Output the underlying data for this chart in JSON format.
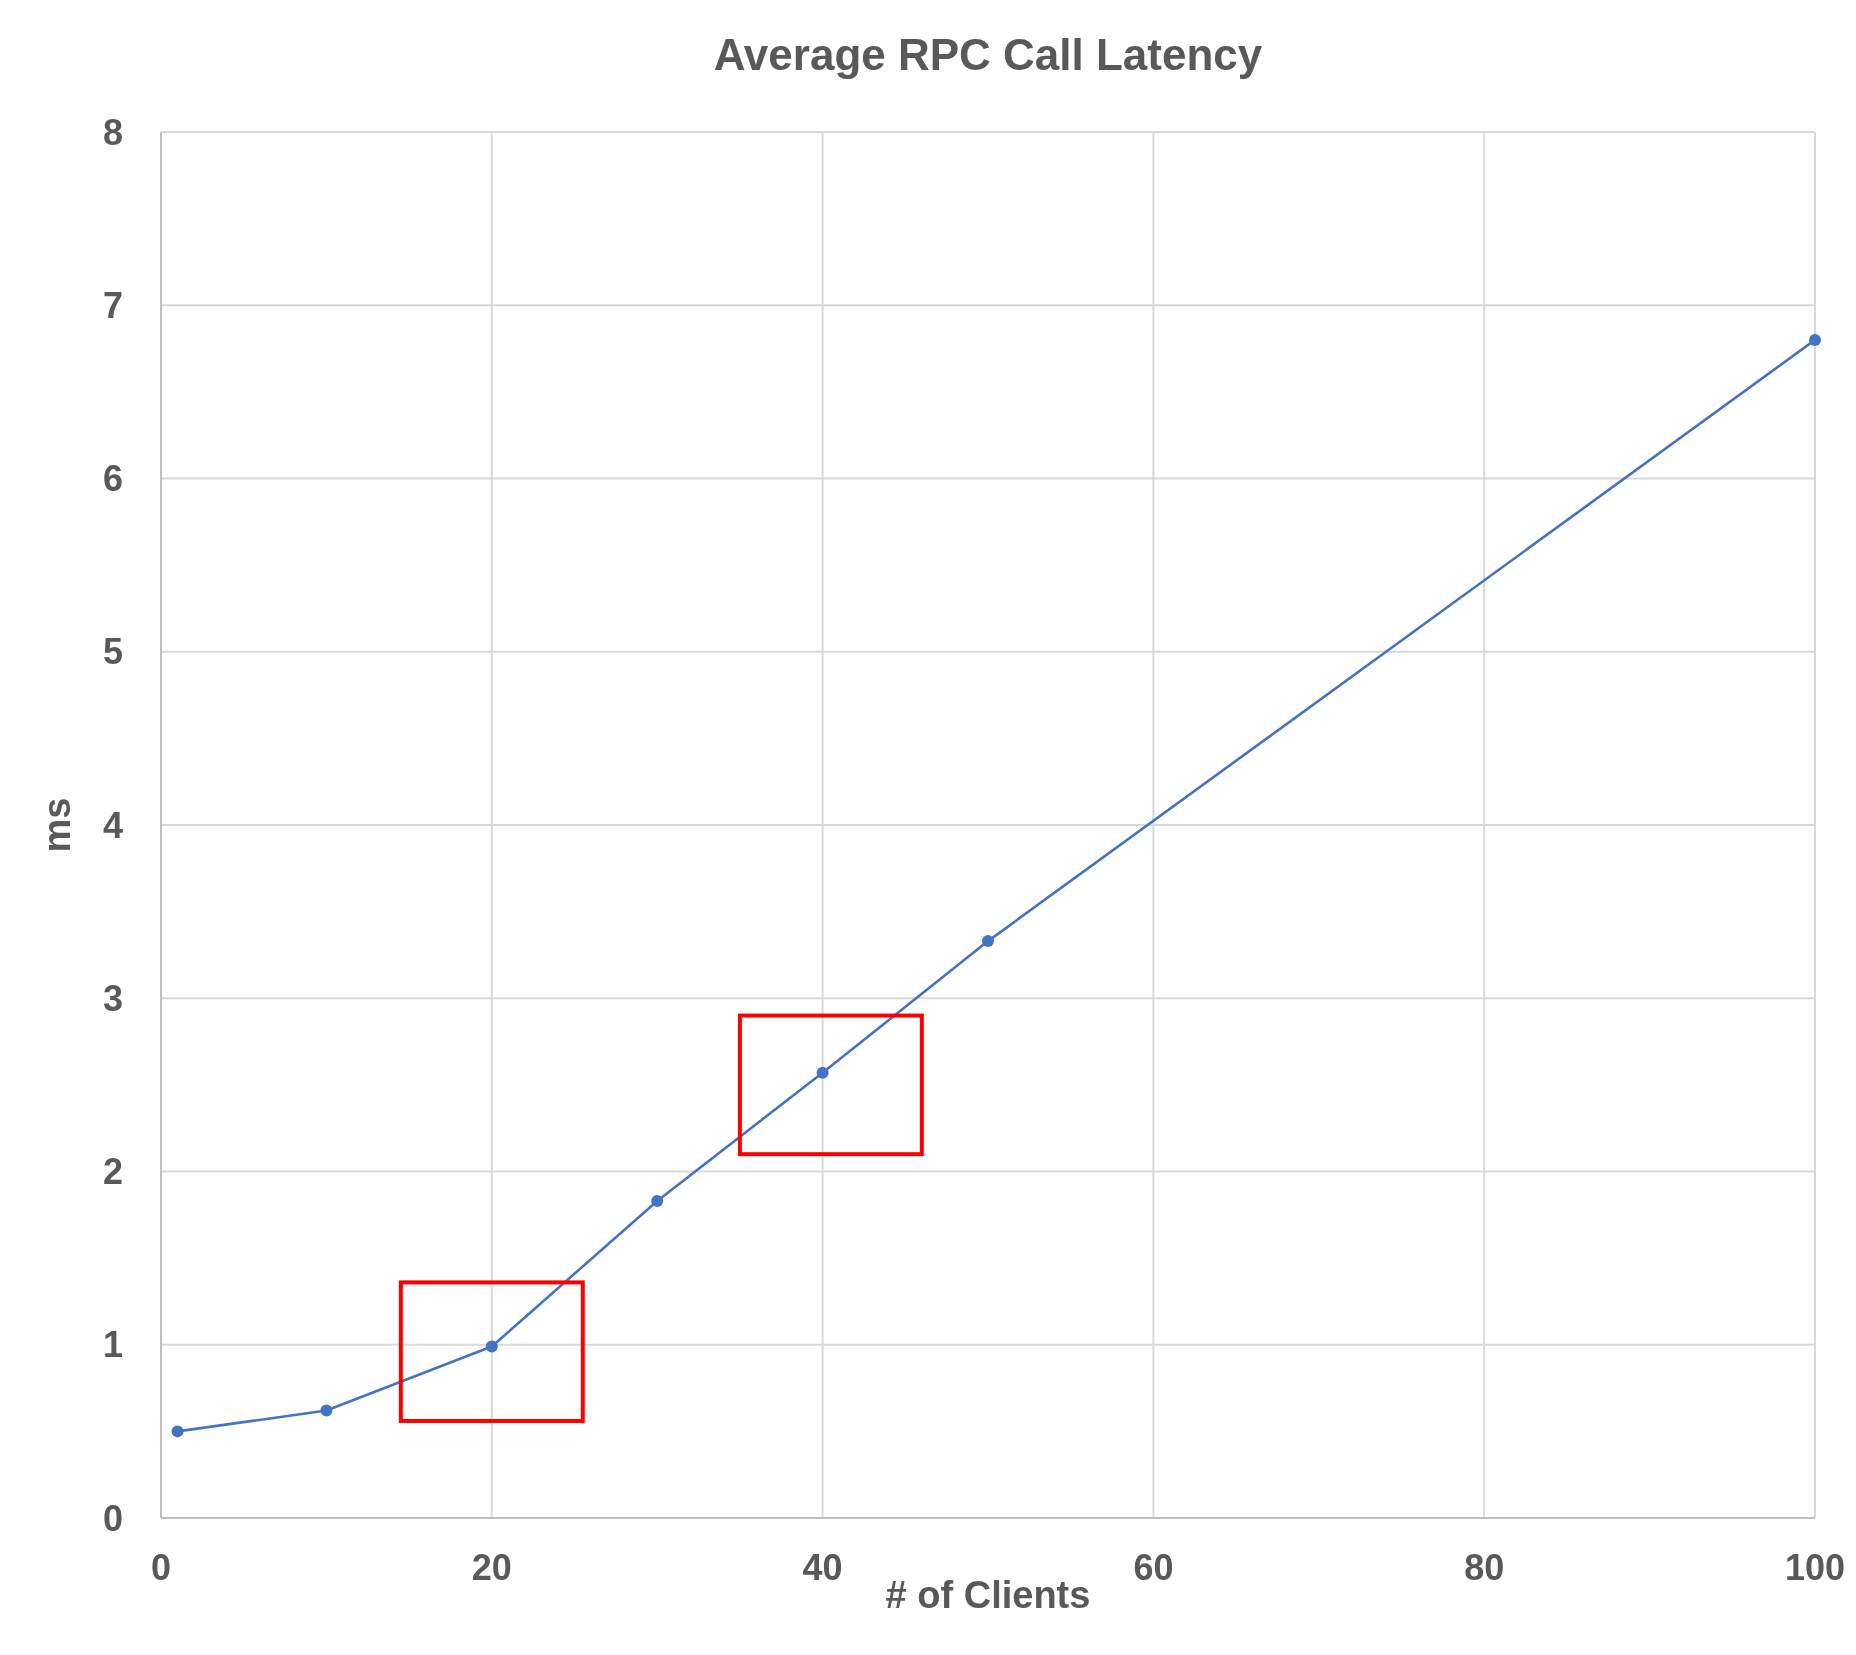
{
  "chart_data": {
    "type": "line",
    "title": "Average RPC Call Latency",
    "xlabel": "# of Clients",
    "ylabel": "ms",
    "x": [
      1,
      10,
      20,
      30,
      40,
      50,
      100
    ],
    "series": [
      {
        "color": "#4472c4",
        "values": [
          0.5,
          0.62,
          0.99,
          1.83,
          2.57,
          3.33,
          6.8
        ]
      }
    ],
    "xlim": [
      0,
      100
    ],
    "xticks": [
      0,
      20,
      40,
      60,
      80,
      100
    ],
    "ylim": [
      0,
      8
    ],
    "yticks": [
      0,
      1,
      2,
      3,
      4,
      5,
      6,
      7,
      8
    ],
    "grid": true,
    "marker": "circle",
    "line_style": "solid"
  }
}
